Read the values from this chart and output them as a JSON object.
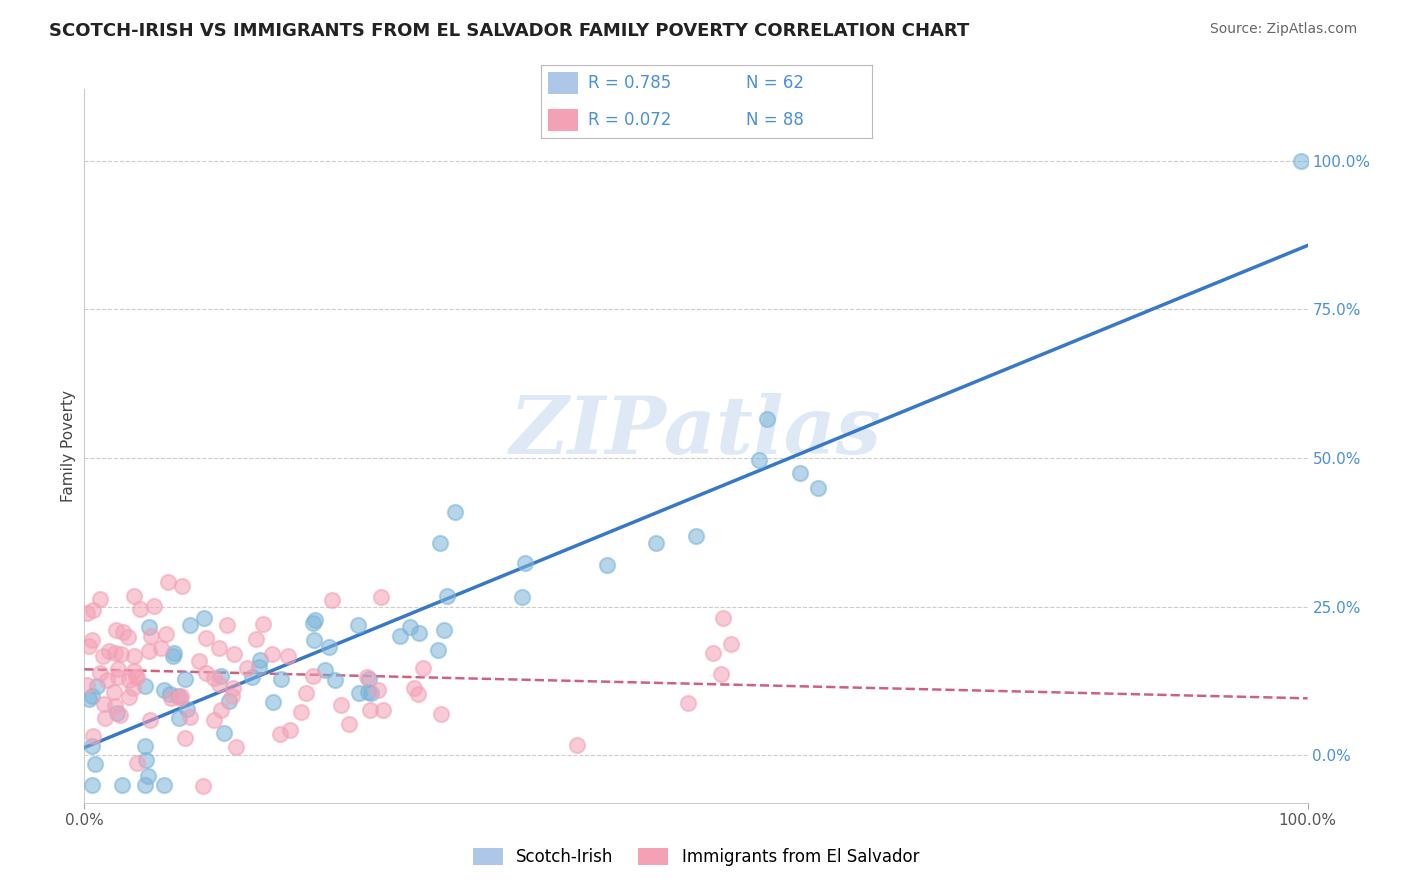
{
  "title": "SCOTCH-IRISH VS IMMIGRANTS FROM EL SALVADOR FAMILY POVERTY CORRELATION CHART",
  "source": "Source: ZipAtlas.com",
  "ylabel": "Family Poverty",
  "xlim": [
    0.0,
    1.0
  ],
  "ylim": [
    -0.08,
    1.12
  ],
  "y_tick_positions": [
    0.0,
    0.25,
    0.5,
    0.75,
    1.0
  ],
  "y_tick_labels": [
    "0.0%",
    "25.0%",
    "50.0%",
    "75.0%",
    "100.0%"
  ],
  "x_tick_labels": [
    "0.0%",
    "100.0%"
  ],
  "bottom_legend": [
    {
      "label": "Scotch-Irish",
      "color": "#aec6e8"
    },
    {
      "label": "Immigrants from El Salvador",
      "color": "#f4a0b5"
    }
  ],
  "series1_scatter_color": "#7ab3d8",
  "series2_scatter_color": "#f4a0b5",
  "series1_line_color": "#3878c8",
  "series2_line_color": "#d06080",
  "grid_color": "#cccccc",
  "background_color": "#ffffff",
  "watermark": "ZIPatlas",
  "legend_box_color1": "#aec6e8",
  "legend_box_color2": "#f4a0b5",
  "legend_text_color": "#4a90d9",
  "R1": 0.785,
  "N1": 62,
  "R2": 0.072,
  "N2": 88,
  "series1_line_x": [
    0.0,
    1.0
  ],
  "series1_line_y": [
    0.0,
    0.82
  ],
  "series2_line_x": [
    0.0,
    1.0
  ],
  "series2_line_y": [
    0.14,
    0.19
  ]
}
